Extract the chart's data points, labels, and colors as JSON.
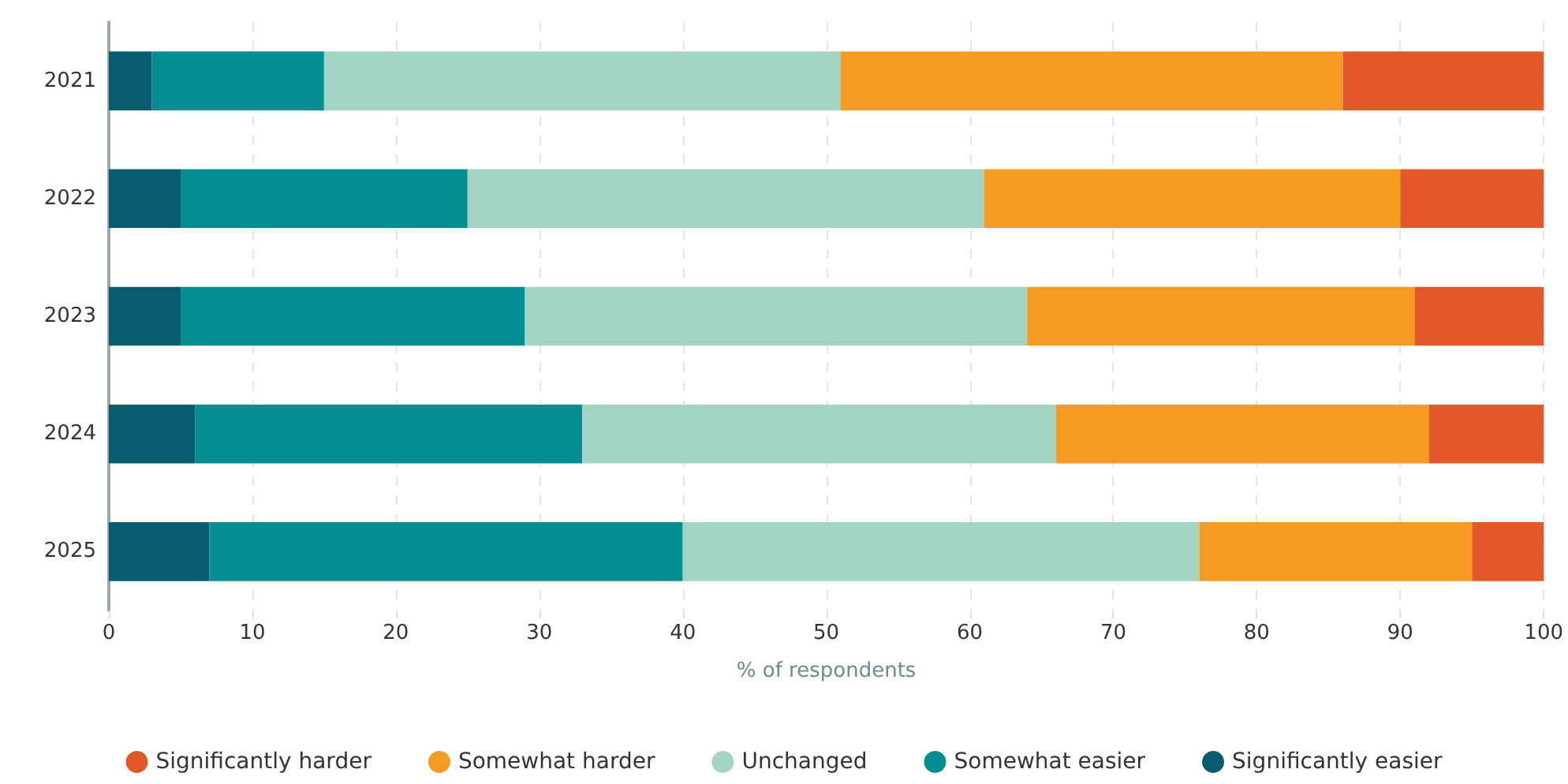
{
  "chart_data": {
    "type": "bar",
    "orientation": "horizontal",
    "stacked": true,
    "xlabel": "% of respondents",
    "categories": [
      "2021",
      "2022",
      "2023",
      "2024",
      "2025"
    ],
    "series": [
      {
        "name": "Significantly easier",
        "color": "#085c6e",
        "values": [
          3,
          5,
          5,
          6,
          7
        ]
      },
      {
        "name": "Somewhat easier",
        "color": "#048e91",
        "values": [
          12,
          20,
          24,
          27,
          33
        ]
      },
      {
        "name": "Unchanged",
        "color": "#a3d3c2",
        "values": [
          36,
          36,
          35,
          33,
          36
        ]
      },
      {
        "name": "Somewhat harder",
        "color": "#f39c21",
        "values": [
          35,
          29,
          27,
          26,
          19
        ]
      },
      {
        "name": "Significantly harder",
        "color": "#e25829",
        "values": [
          14,
          10,
          9,
          8,
          5
        ]
      }
    ],
    "xlim": [
      0,
      100
    ],
    "xticks": [
      0,
      10,
      20,
      30,
      40,
      50,
      60,
      70,
      80,
      90,
      100
    ],
    "grid": "x",
    "legend": "bottom"
  }
}
